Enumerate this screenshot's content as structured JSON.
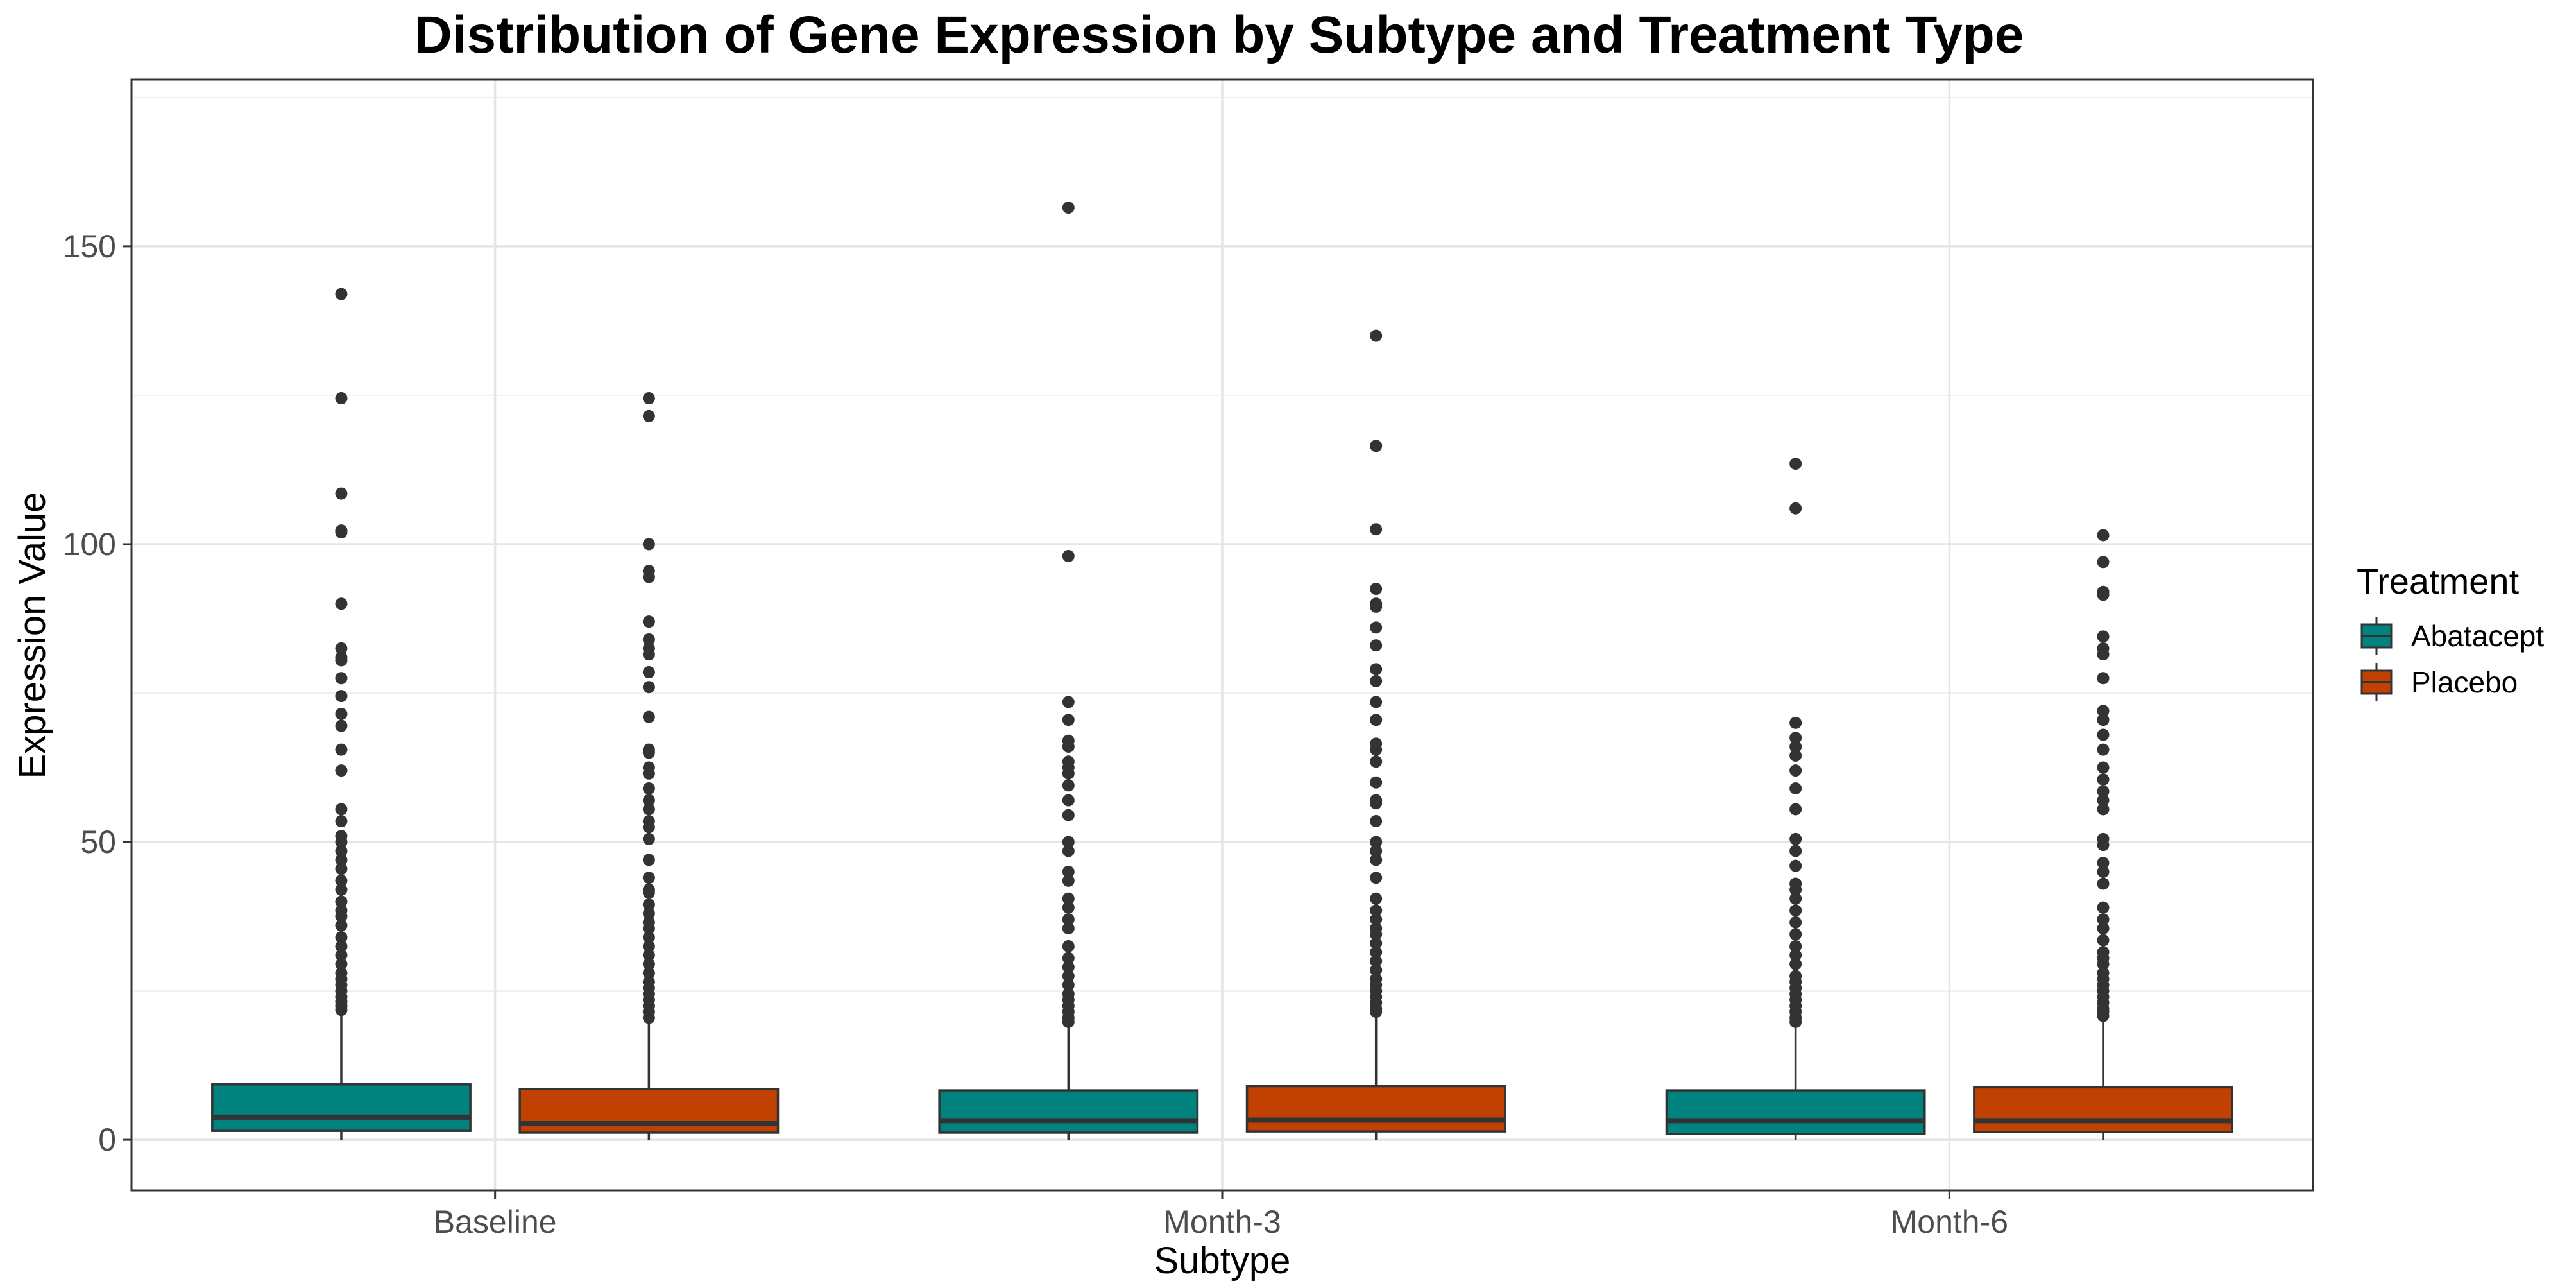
{
  "chart_data": {
    "type": "box",
    "title": "Distribution of Gene Expression by Subtype and Treatment Type",
    "xlabel": "Subtype",
    "ylabel": "Expression Value",
    "ylim": [
      -8.5,
      178
    ],
    "yticks": [
      0,
      50,
      100,
      150
    ],
    "categories": [
      "Baseline",
      "Month-3",
      "Month-6"
    ],
    "grid": true,
    "legend": {
      "title": "Treatment",
      "position": "right",
      "entries": [
        "Abatacept",
        "Placebo"
      ]
    },
    "colors": {
      "Abatacept": "#00827F",
      "Placebo": "#C14103"
    },
    "series": [
      {
        "name": "Abatacept",
        "boxes": [
          {
            "category": "Baseline",
            "min": 0,
            "q1": 1.5,
            "median": 3.8,
            "q3": 9.3,
            "whisker_high": 21,
            "outliers": [
              142,
              124.5,
              108.5,
              102.3,
              102,
              90,
              82.5,
              81,
              80.5,
              77.5,
              74.5,
              71.5,
              69.5,
              65.5,
              62,
              55.5,
              53.5,
              51,
              50,
              48.5,
              47,
              45.5,
              43.5,
              42,
              40,
              38.5,
              37.5,
              36,
              34,
              32.5,
              31,
              29.5,
              28,
              27,
              26,
              25,
              24,
              23.2,
              22.5,
              21.8
            ]
          },
          {
            "category": "Month-3",
            "min": 0,
            "q1": 1.2,
            "median": 3.2,
            "q3": 8.3,
            "whisker_high": 19,
            "outliers": [
              156.5,
              98,
              73.5,
              70.5,
              67,
              66,
              63.5,
              62.5,
              61.5,
              59.5,
              57,
              54.5,
              50,
              48.5,
              45,
              43.5,
              40.5,
              39,
              37,
              35.5,
              32.5,
              30.5,
              29,
              27.5,
              26,
              24.5,
              23.5,
              22.5,
              21.5,
              20.5,
              19.8
            ]
          },
          {
            "category": "Month-6",
            "min": 0,
            "q1": 1.0,
            "median": 3.2,
            "q3": 8.3,
            "whisker_high": 19,
            "outliers": [
              113.5,
              106,
              70,
              67.5,
              66,
              64.5,
              62,
              59,
              55.5,
              50.5,
              48.5,
              46,
              43,
              42,
              40.5,
              38.5,
              36.5,
              34.5,
              32.5,
              31,
              29.5,
              27.5,
              26.5,
              25.5,
              24.5,
              23.5,
              22.5,
              21.5,
              20.5,
              19.8
            ]
          }
        ]
      },
      {
        "name": "Placebo",
        "boxes": [
          {
            "category": "Baseline",
            "min": 0,
            "q1": 1.2,
            "median": 2.8,
            "q3": 8.5,
            "whisker_high": 19.5,
            "outliers": [
              124.5,
              121.5,
              100,
              95.5,
              94.5,
              87,
              84,
              82.5,
              81.5,
              78.5,
              76,
              71,
              65.5,
              65,
              62.5,
              61.5,
              59,
              57,
              55.5,
              53.5,
              52.5,
              50.5,
              47,
              44,
              42,
              41.5,
              39.5,
              38,
              36.5,
              35.5,
              34,
              32.5,
              31,
              29.5,
              28,
              26.5,
              25.5,
              24.5,
              23.5,
              22.5,
              21.5,
              20.5
            ]
          },
          {
            "category": "Month-3",
            "min": 0,
            "q1": 1.4,
            "median": 3.3,
            "q3": 9.0,
            "whisker_high": 20.5,
            "outliers": [
              135,
              116.5,
              102.5,
              92.5,
              90,
              89.5,
              86,
              83,
              79,
              77,
              73.5,
              70.5,
              66.5,
              65.5,
              63.5,
              60,
              57,
              56.5,
              53.5,
              50,
              48.5,
              47,
              44,
              40.5,
              38.5,
              37,
              35.5,
              34.5,
              33,
              31.5,
              30,
              28.5,
              27,
              26,
              25,
              24,
              23,
              22,
              21.5
            ]
          },
          {
            "category": "Month-6",
            "min": 0,
            "q1": 1.3,
            "median": 3.2,
            "q3": 8.8,
            "whisker_high": 20,
            "outliers": [
              101.5,
              97,
              92,
              91.5,
              84.5,
              82.5,
              81.5,
              77.5,
              72,
              70.5,
              68,
              65.5,
              62.5,
              60.5,
              58.5,
              57,
              55.5,
              50.5,
              49.5,
              46.5,
              45,
              43,
              39,
              37,
              35.5,
              33.5,
              31.5,
              30.5,
              29.5,
              28,
              27,
              26,
              25,
              24,
              23,
              22,
              21.5,
              20.8
            ]
          }
        ]
      }
    ]
  }
}
